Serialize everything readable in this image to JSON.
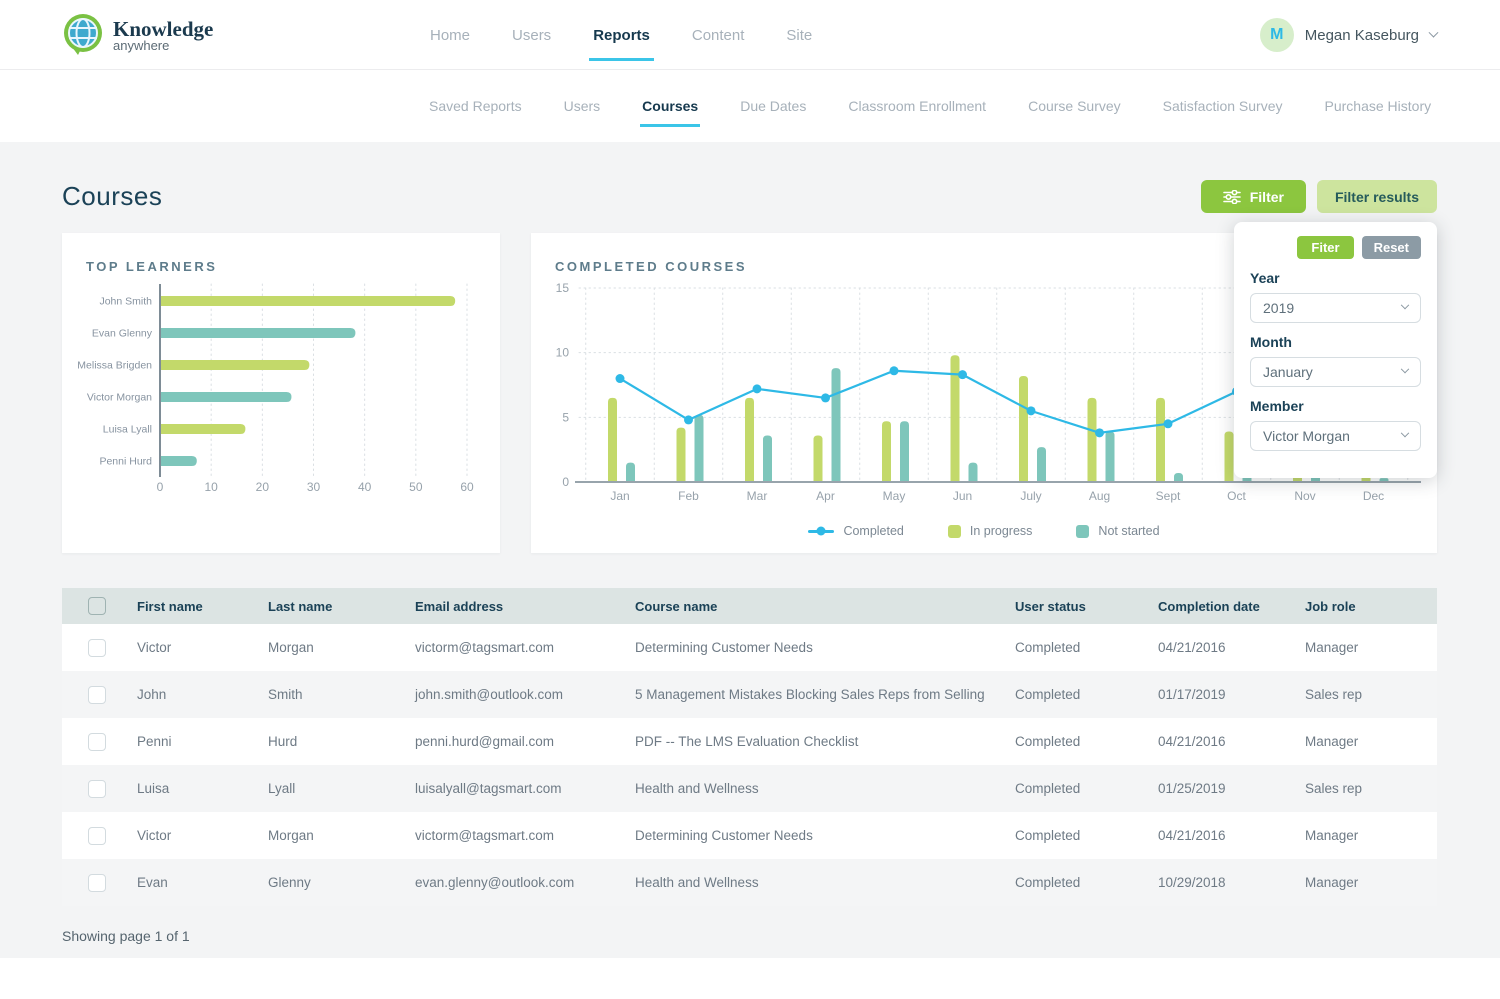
{
  "brand": {
    "title": "Knowledge",
    "subtitle": "anywhere"
  },
  "header": {
    "nav": [
      {
        "label": "Home",
        "active": false
      },
      {
        "label": "Users",
        "active": false
      },
      {
        "label": "Reports",
        "active": true
      },
      {
        "label": "Content",
        "active": false
      },
      {
        "label": "Site",
        "active": false
      }
    ],
    "user": {
      "initial": "M",
      "name": "Megan Kaseburg"
    }
  },
  "subnav": [
    {
      "label": "Saved Reports",
      "active": false
    },
    {
      "label": "Users",
      "active": false
    },
    {
      "label": "Courses",
      "active": true
    },
    {
      "label": "Due Dates",
      "active": false
    },
    {
      "label": "Classroom Enrollment",
      "active": false
    },
    {
      "label": "Course Survey",
      "active": false
    },
    {
      "label": "Satisfaction Survey",
      "active": false
    },
    {
      "label": "Purchase History",
      "active": false
    }
  ],
  "page": {
    "title": "Courses",
    "filter_button": "Filter",
    "filter_results_button": "Filter results",
    "showing": "Showing page 1 of 1"
  },
  "filter_panel": {
    "apply_label": "Fiter",
    "reset_label": "Reset",
    "fields": [
      {
        "label": "Year",
        "value": "2019"
      },
      {
        "label": "Month",
        "value": "January"
      },
      {
        "label": "Member",
        "value": "Victor Morgan"
      }
    ]
  },
  "charts": {
    "top_learners_title": "TOP LEARNERS",
    "completed_title": "COMPLETED COURSES"
  },
  "colors": {
    "green_bar": "#c3d96a",
    "teal_bar": "#7ec6bb",
    "cyan_line": "#2eb9e6",
    "accent_green": "#8cc63f",
    "light_green_btn": "#cde49e",
    "navy": "#1b4257",
    "underline_cyan": "#3bc5e8"
  },
  "chart_data": [
    {
      "type": "bar",
      "orientation": "horizontal",
      "title": "TOP LEARNERS",
      "categories": [
        "John Smith",
        "Evan Glenny",
        "Melissa Brigden",
        "Victor Morgan",
        "Luisa Lyall",
        "Penni Hurd"
      ],
      "values": [
        57.5,
        38,
        29,
        25.5,
        16.5,
        7
      ],
      "bar_colors": [
        "#c3d96a",
        "#7ec6bb",
        "#c3d96a",
        "#7ec6bb",
        "#c3d96a",
        "#7ec6bb"
      ],
      "xlim": [
        0,
        60
      ],
      "xticks": [
        0,
        10,
        20,
        30,
        40,
        50,
        60
      ],
      "grid": "dotted-vertical"
    },
    {
      "type": "combo",
      "title": "COMPLETED COURSES",
      "categories": [
        "Jan",
        "Feb",
        "Mar",
        "Apr",
        "May",
        "Jun",
        "July",
        "Aug",
        "Sept",
        "Oct",
        "Nov",
        "Dec"
      ],
      "ylim": [
        0,
        15
      ],
      "yticks": [
        0,
        5,
        10,
        15
      ],
      "grid": "dotted",
      "legend_position": "bottom",
      "series": [
        {
          "name": "Completed",
          "type": "line",
          "color": "#2eb9e6",
          "values": [
            8,
            4.8,
            7.2,
            6.5,
            8.6,
            8.3,
            5.5,
            3.8,
            4.5,
            7,
            null,
            null
          ]
        },
        {
          "name": "In progress",
          "type": "bar",
          "color": "#c3d96a",
          "values": [
            6.5,
            4.2,
            6.5,
            3.6,
            4.7,
            9.8,
            8.2,
            6.5,
            6.5,
            3.9,
            0.8,
            0.8
          ]
        },
        {
          "name": "Not started",
          "type": "bar",
          "color": "#7ec6bb",
          "values": [
            1.5,
            5.2,
            3.6,
            8.8,
            4.7,
            1.5,
            2.7,
            3.9,
            0.7,
            0.8,
            0.9,
            0.3
          ]
        }
      ]
    }
  ],
  "table": {
    "columns": [
      "First name",
      "Last name",
      "Email address",
      "Course name",
      "User status",
      "Completion date",
      "Job role"
    ],
    "rows": [
      {
        "first": "Victor",
        "last": "Morgan",
        "email": "victorm@tagsmart.com",
        "course": "Determining Customer Needs",
        "status": "Completed",
        "date": "04/21/2016",
        "role": "Manager"
      },
      {
        "first": "John",
        "last": "Smith",
        "email": "john.smith@outlook.com",
        "course": "5 Management Mistakes Blocking Sales Reps from Selling",
        "status": "Completed",
        "date": "01/17/2019",
        "role": "Sales rep"
      },
      {
        "first": "Penni",
        "last": "Hurd",
        "email": "penni.hurd@gmail.com",
        "course": "PDF -- The LMS Evaluation Checklist",
        "status": "Completed",
        "date": "04/21/2016",
        "role": "Manager"
      },
      {
        "first": "Luisa",
        "last": "Lyall",
        "email": "luisalyall@tagsmart.com",
        "course": "Health and Wellness",
        "status": "Completed",
        "date": "01/25/2019",
        "role": "Sales rep"
      },
      {
        "first": "Victor",
        "last": "Morgan",
        "email": "victorm@tagsmart.com",
        "course": "Determining Customer Needs",
        "status": "Completed",
        "date": "04/21/2016",
        "role": "Manager"
      },
      {
        "first": "Evan",
        "last": "Glenny",
        "email": "evan.glenny@outlook.com",
        "course": "Health and Wellness",
        "status": "Completed",
        "date": "10/29/2018",
        "role": "Manager"
      }
    ]
  }
}
